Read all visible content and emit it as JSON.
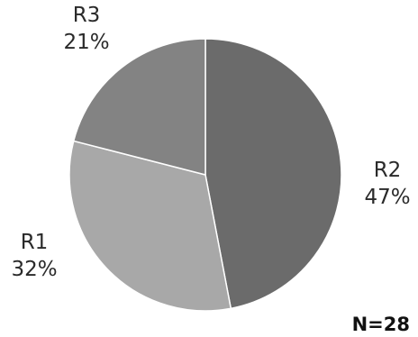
{
  "chart_data": {
    "type": "pie",
    "slices": [
      {
        "name": "R2",
        "value": 47,
        "label": "47%",
        "color": "#6b6b6b"
      },
      {
        "name": "R1",
        "value": 32,
        "label": "32%",
        "color": "#a8a8a8"
      },
      {
        "name": "R3",
        "value": 21,
        "label": "21%",
        "color": "#838383"
      }
    ],
    "start": "12 o'clock",
    "direction": "clockwise",
    "annotation": "N=28",
    "legend": "none",
    "slice_border_color": "#ffffff"
  }
}
